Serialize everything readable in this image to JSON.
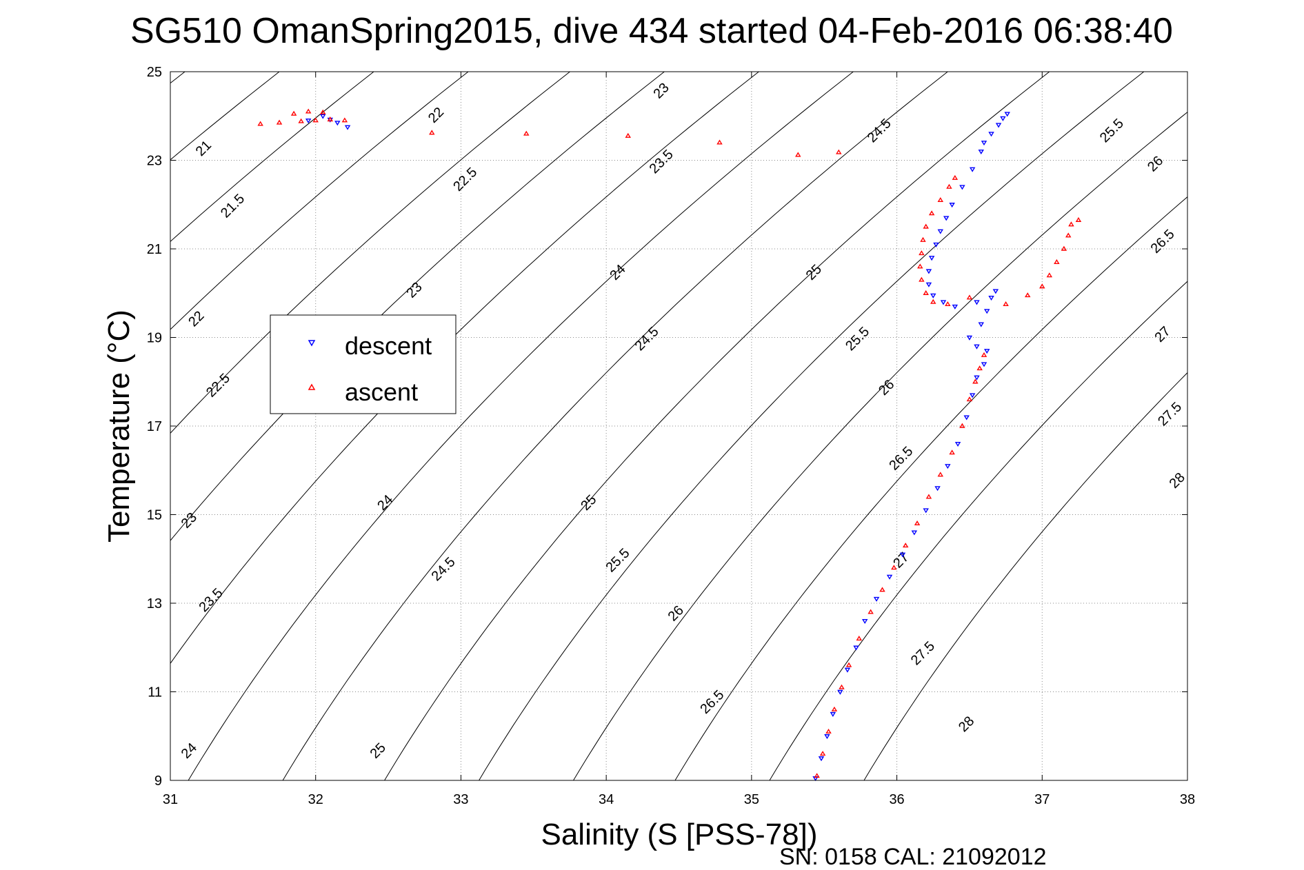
{
  "chart_data": {
    "type": "scatter",
    "title": "SG510 OmanSpring2015, dive 434 started 04-Feb-2016 06:38:40",
    "xlabel": "Salinity (S [PSS-78])",
    "ylabel": "Temperature (°C)",
    "xlim": [
      31,
      38
    ],
    "ylim": [
      9,
      25
    ],
    "x_ticks": [
      31,
      32,
      33,
      34,
      35,
      36,
      37,
      38
    ],
    "y_ticks": [
      9,
      11,
      13,
      15,
      17,
      19,
      21,
      23,
      25
    ],
    "grid": true,
    "legend_position": "left",
    "footer": "SN: 0158  CAL: 21092012",
    "series": [
      {
        "name": "descent",
        "color": "#0000ff",
        "marker": "triangle-down",
        "points": [
          [
            32.22,
            23.75
          ],
          [
            32.15,
            23.85
          ],
          [
            32.1,
            23.92
          ],
          [
            32.05,
            24.0
          ],
          [
            31.95,
            23.9
          ],
          [
            36.76,
            24.05
          ],
          [
            36.73,
            23.95
          ],
          [
            36.7,
            23.8
          ],
          [
            36.65,
            23.6
          ],
          [
            36.6,
            23.4
          ],
          [
            36.58,
            23.2
          ],
          [
            36.52,
            22.8
          ],
          [
            36.45,
            22.4
          ],
          [
            36.38,
            22.0
          ],
          [
            36.34,
            21.7
          ],
          [
            36.3,
            21.4
          ],
          [
            36.27,
            21.1
          ],
          [
            36.24,
            20.8
          ],
          [
            36.22,
            20.5
          ],
          [
            36.22,
            20.2
          ],
          [
            36.25,
            19.95
          ],
          [
            36.32,
            19.8
          ],
          [
            36.4,
            19.7
          ],
          [
            36.55,
            19.8
          ],
          [
            36.65,
            19.9
          ],
          [
            36.68,
            20.05
          ],
          [
            36.62,
            19.6
          ],
          [
            36.58,
            19.3
          ],
          [
            36.5,
            19.0
          ],
          [
            36.55,
            18.8
          ],
          [
            36.62,
            18.7
          ],
          [
            36.6,
            18.4
          ],
          [
            36.55,
            18.1
          ],
          [
            36.52,
            17.7
          ],
          [
            36.48,
            17.2
          ],
          [
            36.42,
            16.6
          ],
          [
            36.35,
            16.1
          ],
          [
            36.28,
            15.6
          ],
          [
            36.2,
            15.1
          ],
          [
            36.12,
            14.6
          ],
          [
            36.04,
            14.1
          ],
          [
            35.95,
            13.6
          ],
          [
            35.86,
            13.1
          ],
          [
            35.78,
            12.6
          ],
          [
            35.72,
            12.0
          ],
          [
            35.66,
            11.5
          ],
          [
            35.61,
            11.0
          ],
          [
            35.56,
            10.5
          ],
          [
            35.52,
            10.0
          ],
          [
            35.48,
            9.5
          ],
          [
            35.44,
            9.05
          ]
        ]
      },
      {
        "name": "ascent",
        "color": "#ff0000",
        "marker": "triangle-up",
        "points": [
          [
            31.62,
            23.82
          ],
          [
            31.75,
            23.85
          ],
          [
            31.9,
            23.88
          ],
          [
            32.0,
            23.9
          ],
          [
            32.1,
            23.92
          ],
          [
            32.2,
            23.9
          ],
          [
            31.85,
            24.05
          ],
          [
            31.95,
            24.1
          ],
          [
            32.05,
            24.08
          ],
          [
            32.8,
            23.62
          ],
          [
            33.45,
            23.6
          ],
          [
            34.15,
            23.55
          ],
          [
            34.78,
            23.4
          ],
          [
            35.32,
            23.12
          ],
          [
            35.6,
            23.18
          ],
          [
            36.4,
            22.6
          ],
          [
            36.36,
            22.4
          ],
          [
            36.3,
            22.1
          ],
          [
            36.24,
            21.8
          ],
          [
            36.2,
            21.5
          ],
          [
            36.18,
            21.2
          ],
          [
            36.17,
            20.9
          ],
          [
            36.16,
            20.6
          ],
          [
            36.17,
            20.3
          ],
          [
            36.2,
            20.0
          ],
          [
            36.25,
            19.8
          ],
          [
            36.35,
            19.75
          ],
          [
            36.5,
            19.9
          ],
          [
            36.75,
            19.75
          ],
          [
            36.9,
            19.95
          ],
          [
            37.0,
            20.15
          ],
          [
            37.05,
            20.4
          ],
          [
            37.1,
            20.7
          ],
          [
            37.15,
            21.0
          ],
          [
            37.18,
            21.3
          ],
          [
            37.2,
            21.55
          ],
          [
            37.25,
            21.65
          ],
          [
            36.6,
            18.6
          ],
          [
            36.57,
            18.3
          ],
          [
            36.54,
            18.0
          ],
          [
            36.5,
            17.6
          ],
          [
            36.45,
            17.0
          ],
          [
            36.38,
            16.4
          ],
          [
            36.3,
            15.9
          ],
          [
            36.22,
            15.4
          ],
          [
            36.14,
            14.8
          ],
          [
            36.06,
            14.3
          ],
          [
            35.98,
            13.8
          ],
          [
            35.9,
            13.3
          ],
          [
            35.82,
            12.8
          ],
          [
            35.74,
            12.2
          ],
          [
            35.67,
            11.6
          ],
          [
            35.62,
            11.1
          ],
          [
            35.57,
            10.6
          ],
          [
            35.53,
            10.1
          ],
          [
            35.49,
            9.6
          ],
          [
            35.45,
            9.1
          ]
        ]
      }
    ],
    "contours": [
      {
        "value": 21,
        "t25_s": 31.1,
        "label_s": 31.25
      },
      {
        "value": 21.5,
        "t25_s": 31.75,
        "label_s": 31.45
      },
      {
        "value": 22,
        "t25_s": 32.4,
        "label_s": 32.85
      },
      {
        "value": 22.5,
        "t25_s": 33.05,
        "label_s": 33.3
      },
      {
        "value": 23,
        "t25_s": 33.75,
        "label_s": 34.5
      },
      {
        "value": 23.5,
        "t25_s": 34.4,
        "label_s": 34.6
      },
      {
        "value": 24,
        "t25_s": 35.05,
        "label_s": 34.2
      },
      {
        "value": 24.5,
        "t25_s": 35.7,
        "label_s": 35.3
      },
      {
        "value": 25,
        "t25_s": 36.35,
        "label_s": 35.1
      },
      {
        "value": 25.5,
        "t25_s": 37.05,
        "label_s": 35.8
      },
      {
        "value": 26,
        "t25_s": 37.7,
        "label_s": 35.1
      },
      {
        "value": 26.5,
        "t25_s": 38.35,
        "label_s": 35.6
      },
      {
        "value": 27,
        "t25_s": 39.05,
        "label_s": 35.9
      },
      {
        "value": 27.5,
        "t25_s": 39.7,
        "label_s": 36.6
      },
      {
        "value": 28,
        "t25_s": 40.35,
        "label_s": 37.05
      }
    ],
    "contour_labels": [
      {
        "text": "21",
        "s": 31.25,
        "t": 23.2
      },
      {
        "text": "21.5",
        "s": 31.45,
        "t": 21.9
      },
      {
        "text": "22",
        "s": 31.2,
        "t": 19.35
      },
      {
        "text": "22.5",
        "s": 31.35,
        "t": 17.85
      },
      {
        "text": "23",
        "s": 31.15,
        "t": 14.8
      },
      {
        "text": "23.5",
        "s": 31.3,
        "t": 13.0
      },
      {
        "text": "24",
        "s": 31.15,
        "t": 9.6
      },
      {
        "text": "22",
        "s": 32.85,
        "t": 23.95
      },
      {
        "text": "22.5",
        "s": 33.05,
        "t": 22.5
      },
      {
        "text": "23",
        "s": 32.7,
        "t": 20.0
      },
      {
        "text": "24",
        "s": 32.5,
        "t": 15.2
      },
      {
        "text": "24.5",
        "s": 32.9,
        "t": 13.7
      },
      {
        "text": "25",
        "s": 32.45,
        "t": 9.6
      },
      {
        "text": "23",
        "s": 34.4,
        "t": 24.5
      },
      {
        "text": "23.5",
        "s": 34.4,
        "t": 22.9
      },
      {
        "text": "24",
        "s": 34.1,
        "t": 20.4
      },
      {
        "text": "24.5",
        "s": 34.3,
        "t": 18.9
      },
      {
        "text": "25",
        "s": 33.9,
        "t": 15.2
      },
      {
        "text": "25.5",
        "s": 34.1,
        "t": 13.9
      },
      {
        "text": "26",
        "s": 34.5,
        "t": 12.7
      },
      {
        "text": "26.5",
        "s": 34.75,
        "t": 10.7
      },
      {
        "text": "24.5",
        "s": 35.9,
        "t": 23.6
      },
      {
        "text": "25",
        "s": 35.45,
        "t": 20.4
      },
      {
        "text": "25.5",
        "s": 35.75,
        "t": 18.9
      },
      {
        "text": "26",
        "s": 35.95,
        "t": 17.8
      },
      {
        "text": "26.5",
        "s": 36.05,
        "t": 16.2
      },
      {
        "text": "27",
        "s": 36.05,
        "t": 13.9
      },
      {
        "text": "27.5",
        "s": 36.2,
        "t": 11.8
      },
      {
        "text": "28",
        "s": 36.5,
        "t": 10.2
      },
      {
        "text": "25.5",
        "s": 37.5,
        "t": 23.6
      },
      {
        "text": "26",
        "s": 37.8,
        "t": 22.85
      },
      {
        "text": "26.5",
        "s": 37.85,
        "t": 21.1
      },
      {
        "text": "27",
        "s": 37.85,
        "t": 19.0
      },
      {
        "text": "27.5",
        "s": 37.9,
        "t": 17.2
      },
      {
        "text": "28",
        "s": 37.95,
        "t": 15.7
      }
    ]
  }
}
